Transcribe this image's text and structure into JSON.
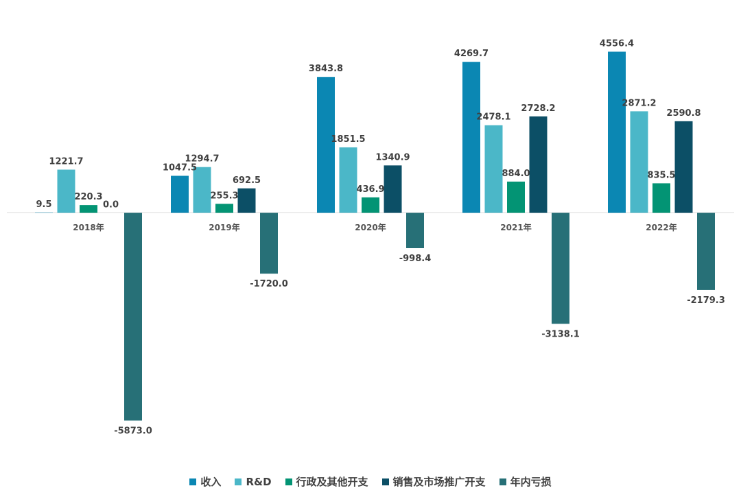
{
  "chart_data": {
    "type": "bar",
    "title": "",
    "xlabel": "",
    "ylabel": "",
    "categories": [
      "2018年",
      "2019年",
      "2020年",
      "2021年",
      "2022年"
    ],
    "series": [
      {
        "name": "收入",
        "color": "#0b87b3",
        "values": [
          9.5,
          1047.5,
          3843.8,
          4269.7,
          4556.4
        ],
        "labels": [
          "9.5",
          "1047.5",
          "3843.8",
          "4269.7",
          "4556.4"
        ]
      },
      {
        "name": "R&D",
        "color": "#4bb7c8",
        "values": [
          1221.7,
          1294.7,
          1851.5,
          2478.1,
          2871.2
        ],
        "labels": [
          "1221.7",
          "1294.7",
          "1851.5",
          "2478.1",
          "2871.2"
        ]
      },
      {
        "name": "行政及其他开支",
        "color": "#039474",
        "values": [
          220.3,
          255.3,
          436.9,
          884.0,
          835.5
        ],
        "labels": [
          "220.3",
          "255.3",
          "436.9",
          "884.0",
          "835.5"
        ]
      },
      {
        "name": "销售及市场推广开支",
        "color": "#0c4f66",
        "values": [
          0.0,
          692.5,
          1340.9,
          2728.2,
          2590.8
        ],
        "labels": [
          "0.0",
          "692.5",
          "1340.9",
          "2728.2",
          "2590.8"
        ]
      },
      {
        "name": "年内亏损",
        "color": "#277077",
        "values": [
          -5873.0,
          -1720.0,
          -998.4,
          -3138.1,
          -2179.3
        ],
        "labels": [
          "-5873.0",
          "-1720.0",
          "-998.4",
          "-3138.1",
          "-2179.3"
        ]
      }
    ],
    "ylim": [
      -5873.0,
      4556.4
    ],
    "grid": false,
    "legend_position": "bottom"
  }
}
